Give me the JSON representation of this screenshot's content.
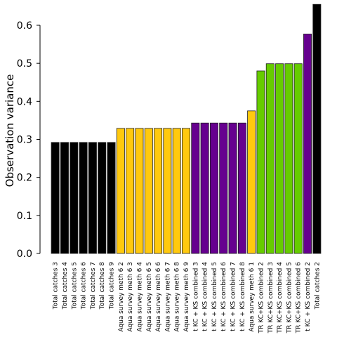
{
  "chart_data": {
    "type": "bar",
    "ylabel": "Observation variance",
    "xlabel": "",
    "ylim": [
      0,
      0.65
    ],
    "yticks": [
      "0.0",
      "0.1",
      "0.2",
      "0.3",
      "0.4",
      "0.5",
      "0.6"
    ],
    "grid": false,
    "categories": [
      "Total catches 3",
      "Total catches 4",
      "Total catches 5",
      "Total catches 6",
      "Total catches 7",
      "Total catches 8",
      "Total catches 9",
      "Aqua survey meth 6 2",
      "Aqua survey meth 6 3",
      "Aqua survey meth 6 4",
      "Aqua survey meth 6 5",
      "Aqua survey meth 6 6",
      "Aqua survey meth 6 7",
      "Aqua survey meth 6 8",
      "Aqua survey meth 6 9",
      "t KC + KS combined 3",
      "t KC + KS combined 4",
      "t KC + KS combined 5",
      "t KC + KS combined 6",
      "t KC + KS combined 7",
      "t KC + KS combined 8",
      "Aqua survey meth 6 1",
      "TR KC+KS combined 2",
      "TR KC+KS combined 3",
      "TR KC+KS combined 4",
      "TR KC+KS combined 5",
      "TR KC+KS combined 6",
      "t KC + KS combined 2",
      "Total catches 2"
    ],
    "values": [
      0.292,
      0.292,
      0.292,
      0.292,
      0.292,
      0.292,
      0.292,
      0.329,
      0.329,
      0.329,
      0.329,
      0.329,
      0.329,
      0.329,
      0.329,
      0.343,
      0.343,
      0.343,
      0.343,
      0.343,
      0.343,
      0.375,
      0.48,
      0.499,
      0.499,
      0.499,
      0.499,
      0.577,
      0.655
    ],
    "colors": [
      "#000000",
      "#000000",
      "#000000",
      "#000000",
      "#000000",
      "#000000",
      "#000000",
      "#FFC90E",
      "#FFC90E",
      "#FFC90E",
      "#FFC90E",
      "#FFC90E",
      "#FFC90E",
      "#FFC90E",
      "#FFC90E",
      "#66008F",
      "#66008F",
      "#66008F",
      "#66008F",
      "#66008F",
      "#66008F",
      "#FFC90E",
      "#66CC00",
      "#66CC00",
      "#66CC00",
      "#66CC00",
      "#66CC00",
      "#66008F",
      "#000000"
    ]
  }
}
